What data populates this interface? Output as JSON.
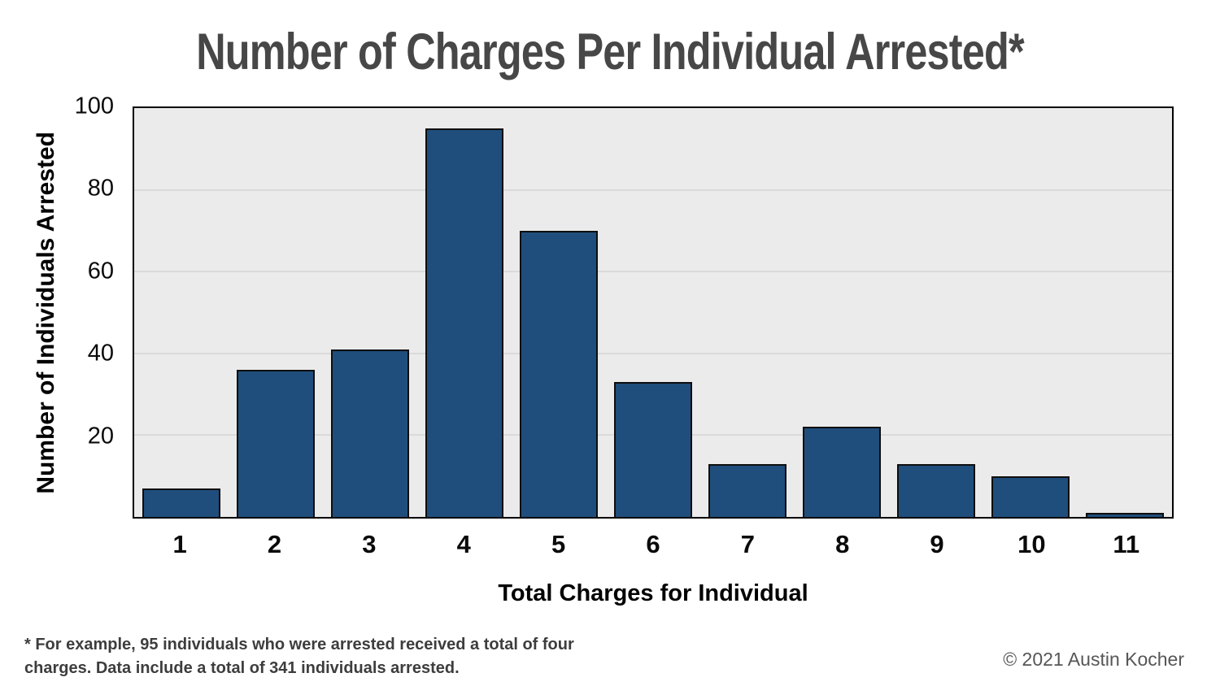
{
  "title": {
    "text": "Number of Charges Per Individual Arrested*"
  },
  "chart_data": {
    "type": "bar",
    "categories": [
      "1",
      "2",
      "3",
      "4",
      "5",
      "6",
      "7",
      "8",
      "9",
      "10",
      "11"
    ],
    "values": [
      7,
      36,
      41,
      95,
      70,
      33,
      13,
      22,
      13,
      10,
      1
    ],
    "title": "Number of Charges Per Individual Arrested*",
    "xlabel": "Total Charges for Individual",
    "ylabel": "Number of Individuals Arrested",
    "ylim": [
      0,
      100
    ],
    "yticks": [
      20,
      40,
      60,
      80,
      100
    ],
    "gridlines": [
      20,
      40,
      60,
      80
    ],
    "grid": "on",
    "legend_position": "none",
    "bar_color": "#1F4E7C",
    "bar_border_color": "#0E0E0E",
    "panel_background": "#EBEBEB",
    "gridline_color": "#C9C9C9",
    "title_color": "#474747"
  },
  "footnote": {
    "line1": "* For example, 95 individuals who were arrested received a total of four",
    "line2": "charges. Data include a total of 341 individuals arrested."
  },
  "copyright": {
    "text": "© 2021 Austin Kocher"
  }
}
